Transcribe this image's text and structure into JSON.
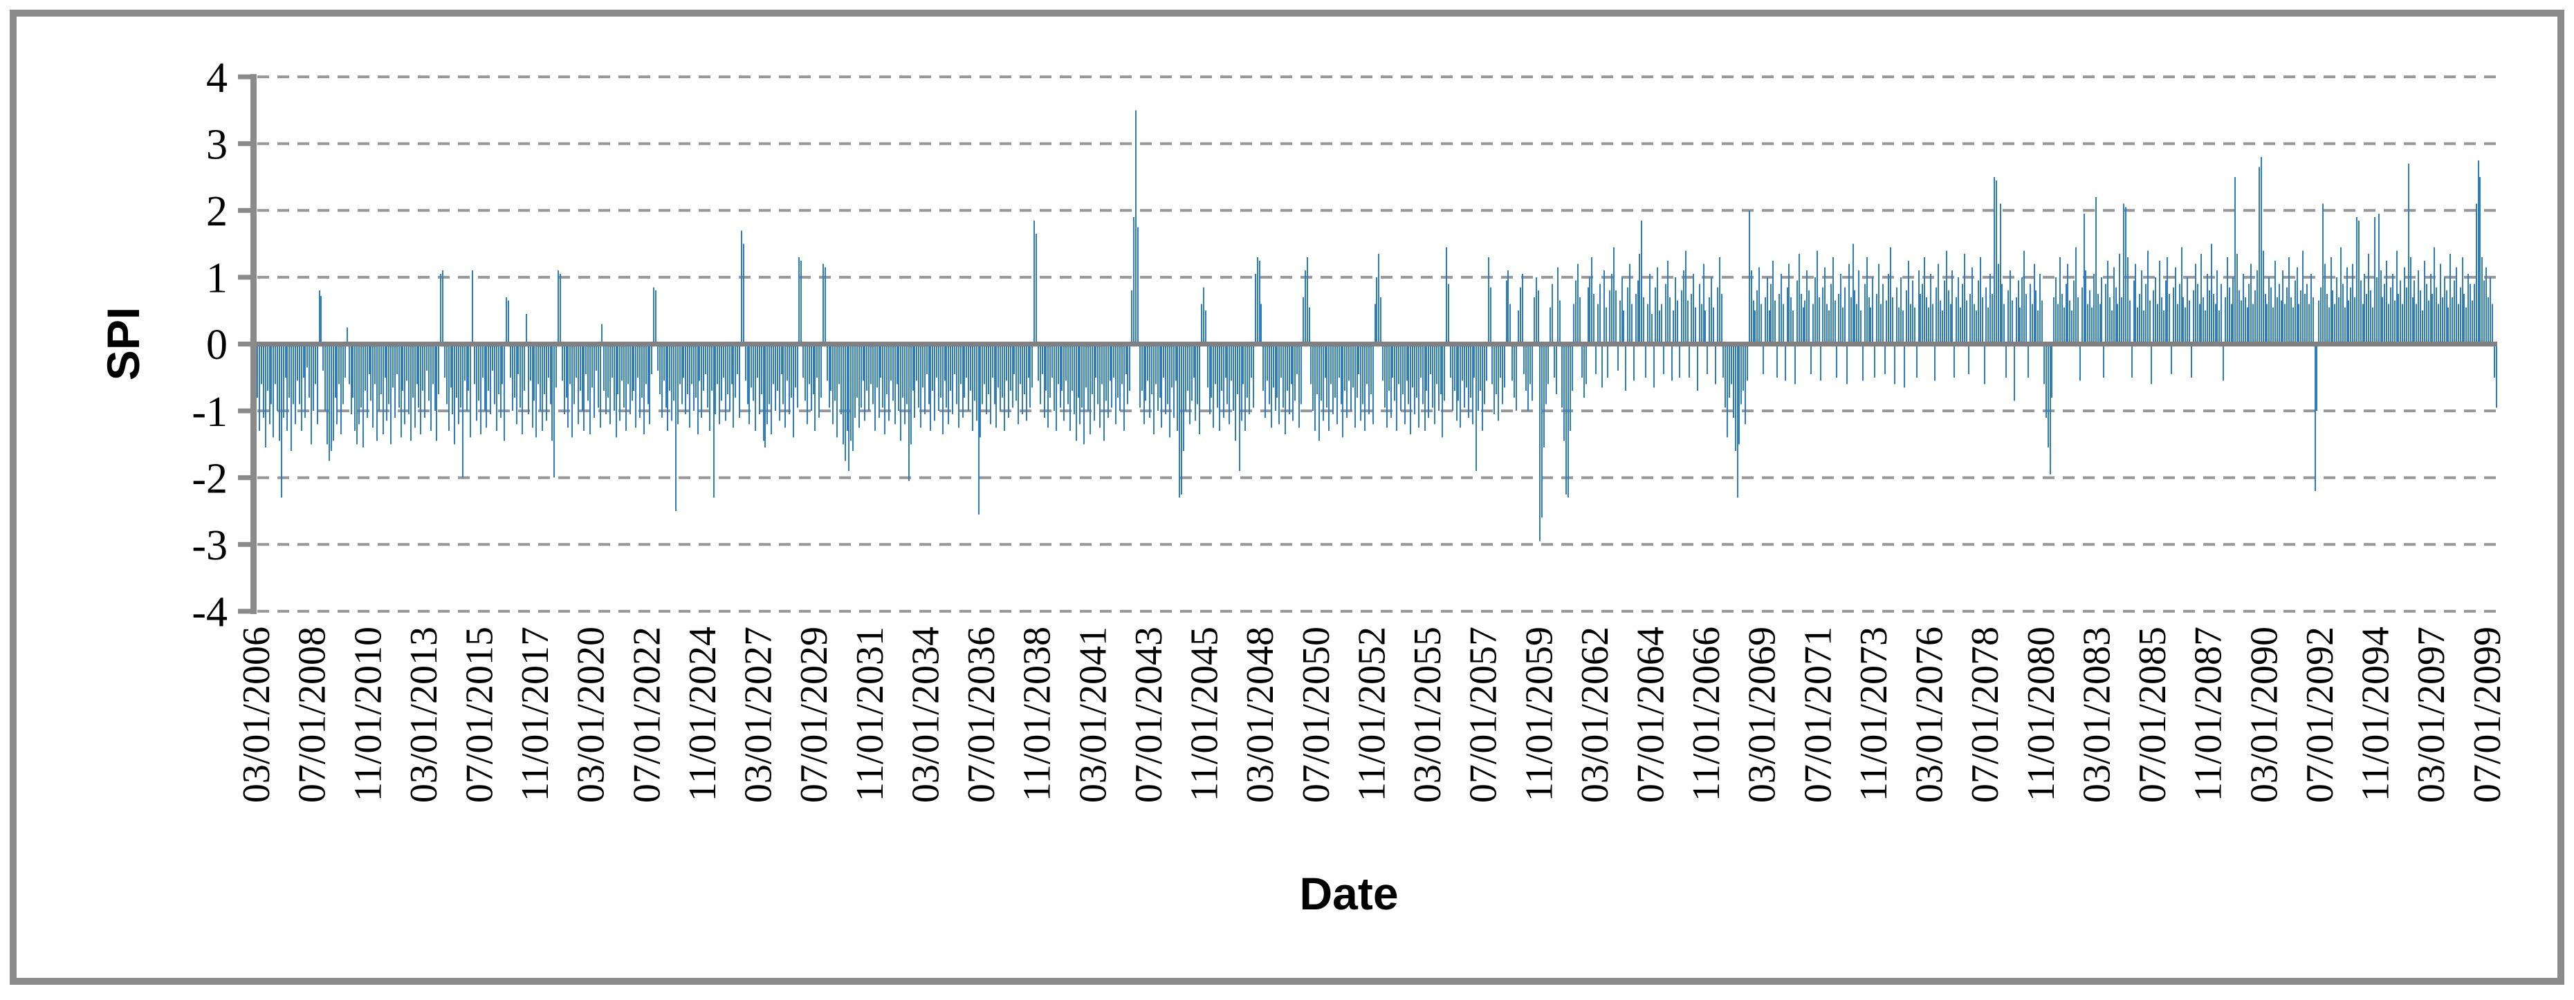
{
  "page": {
    "background": "#ffffff"
  },
  "colors": {
    "bar": "#2E7CBC",
    "zero_axis": "#808080",
    "axis": "#8A8A8A",
    "gridline": "#979797",
    "frame": "#8C8C8C",
    "tick_label": "#000000"
  },
  "chart_data": {
    "type": "bar",
    "title": "",
    "xlabel": "Date",
    "ylabel": "SPI",
    "ylim": [
      -4,
      4
    ],
    "y_ticks": [
      4,
      3,
      2,
      1,
      0,
      -1,
      -2,
      -3,
      -4
    ],
    "grid": "horizontal-dashed",
    "legend_position": "none",
    "x_start": "03/01/2006",
    "x_frequency": "monthly",
    "x_tick_interval_months": 28,
    "x_tick_labels": [
      "03/01/2006",
      "07/01/2008",
      "11/01/2010",
      "03/01/2013",
      "07/01/2015",
      "11/01/2017",
      "03/01/2020",
      "07/01/2022",
      "11/01/2024",
      "03/01/2027",
      "07/01/2029",
      "11/01/2031",
      "03/01/2034",
      "07/01/2036",
      "11/01/2038",
      "03/01/2041",
      "07/01/2043",
      "11/01/2045",
      "03/01/2048",
      "07/01/2050",
      "11/01/2052",
      "03/01/2055",
      "07/01/2057",
      "11/01/2059",
      "03/01/2062",
      "07/01/2064",
      "11/01/2066",
      "03/01/2069",
      "07/01/2071",
      "11/01/2073",
      "03/01/2076",
      "07/01/2078",
      "11/01/2080",
      "03/01/2083",
      "07/01/2085",
      "11/01/2087",
      "03/01/2090",
      "07/01/2092",
      "11/01/2094",
      "03/01/2097",
      "07/01/2099"
    ],
    "series": [
      {
        "name": "SPI",
        "values": [
          -0.45,
          -0.8,
          -1.3,
          -0.6,
          -1.1,
          -1.55,
          -0.7,
          -1.2,
          -0.9,
          -1.4,
          -0.6,
          -1.0,
          -1.45,
          -2.3,
          -1.1,
          -0.5,
          -1.3,
          -0.8,
          -1.6,
          -0.9,
          -1.2,
          -0.55,
          -0.9,
          -1.3,
          -0.5,
          -1.1,
          -0.35,
          -0.8,
          -1.5,
          -1.0,
          -0.6,
          -1.2,
          0.8,
          0.72,
          -0.4,
          -1.0,
          -1.5,
          -1.75,
          -1.6,
          -1.45,
          -0.8,
          -1.2,
          -0.6,
          -1.35,
          -0.9,
          -0.5,
          0.25,
          -0.6,
          -1.05,
          -0.8,
          -1.3,
          -1.5,
          -1.2,
          -0.95,
          -1.55,
          -0.7,
          -1.1,
          -0.45,
          -0.85,
          -1.25,
          -0.6,
          -1.45,
          -1.0,
          -0.75,
          -1.35,
          -0.5,
          -1.15,
          -0.9,
          -1.5,
          -0.65,
          -1.1,
          -0.45,
          -0.95,
          -1.4,
          -0.7,
          -1.2,
          -0.55,
          -1.05,
          -1.45,
          -0.8,
          -1.25,
          -0.6,
          -0.95,
          -1.35,
          -0.7,
          -1.1,
          -0.4,
          -0.85,
          -1.3,
          -0.6,
          -1.0,
          -1.45,
          -0.75,
          1.05,
          1.1,
          -0.5,
          -0.9,
          -1.3,
          -0.65,
          -1.05,
          -1.5,
          -0.8,
          -1.2,
          -0.95,
          -2.0,
          -0.55,
          -1.0,
          -0.7,
          -1.4,
          1.1,
          -0.6,
          -1.15,
          -0.85,
          -1.35,
          -0.5,
          -1.0,
          -1.25,
          -0.7,
          -1.05,
          -0.4,
          -0.9,
          -1.3,
          -0.75,
          -1.1,
          -0.6,
          -1.45,
          0.7,
          0.65,
          -0.5,
          -1.0,
          -0.8,
          -1.2,
          -0.45,
          -0.95,
          -1.35,
          -0.7,
          0.45,
          -1.05,
          -0.55,
          -1.25,
          -0.85,
          -1.4,
          -0.6,
          -1.0,
          -1.3,
          -0.75,
          -1.15,
          -0.5,
          -0.9,
          -1.45,
          -2.0,
          -0.65,
          1.1,
          1.05,
          -0.55,
          -1.05,
          -0.8,
          -1.25,
          -0.6,
          -1.4,
          -0.9,
          -0.5,
          -1.2,
          -0.7,
          -1.0,
          -1.3,
          -0.45,
          -0.85,
          -1.35,
          -0.65,
          -1.1,
          -0.4,
          -0.95,
          -1.25,
          0.3,
          -0.7,
          -1.05,
          -0.8,
          -1.2,
          -0.5,
          -1.0,
          -1.4,
          -0.75,
          -1.15,
          -0.55,
          -0.95,
          -1.3,
          -0.6,
          -1.05,
          -0.85,
          -0.7,
          -1.25,
          -0.5,
          -1.1,
          -0.8,
          -1.35,
          -0.6,
          -0.9,
          -1.2,
          -0.45,
          0.85,
          0.8,
          -0.4,
          -0.75,
          -1.1,
          -0.55,
          -0.95,
          -1.3,
          -0.7,
          -1.15,
          -0.85,
          -2.5,
          -1.2,
          -0.6,
          -0.9,
          -0.5,
          -1.05,
          -0.75,
          -1.25,
          -0.6,
          -1.0,
          -0.8,
          -1.35,
          -0.55,
          -1.1,
          -0.7,
          -0.45,
          -0.95,
          -1.3,
          -0.7,
          -2.3,
          -1.05,
          -0.6,
          -1.2,
          -0.85,
          -0.5,
          -1.15,
          -0.75,
          -1.0,
          -0.6,
          -1.25,
          -0.8,
          -0.45,
          -1.1,
          1.7,
          1.5,
          -0.55,
          -0.9,
          -1.2,
          -0.65,
          -0.85,
          -1.3,
          -0.5,
          -1.05,
          -0.75,
          -1.45,
          -1.55,
          -1.2,
          -0.9,
          -1.35,
          -0.6,
          -1.0,
          -0.7,
          -1.15,
          -0.45,
          -0.9,
          -1.25,
          -0.55,
          -1.05,
          -0.8,
          -1.4,
          -0.65,
          -0.95,
          1.3,
          1.25,
          -0.5,
          -0.85,
          -1.2,
          -0.6,
          -1.0,
          -0.75,
          -1.3,
          -0.5,
          -1.1,
          -0.8,
          1.2,
          1.15,
          -0.55,
          -0.95,
          -0.7,
          -1.2,
          -0.85,
          -1.4,
          -0.6,
          -1.05,
          -1.5,
          -1.75,
          -1.3,
          -1.9,
          -1.45,
          -1.6,
          -1.1,
          -0.8,
          -1.25,
          -0.95,
          -0.55,
          -1.15,
          -0.7,
          -1.0,
          -0.6,
          -0.9,
          -1.3,
          -0.65,
          -1.1,
          -0.5,
          -0.95,
          -1.35,
          -0.75,
          -1.15,
          -0.55,
          -0.85,
          -1.2,
          -0.6,
          -1.0,
          -1.45,
          -0.8,
          -1.2,
          -0.9,
          -2.05,
          -1.5,
          -0.7,
          -1.1,
          -0.55,
          -0.95,
          -1.25,
          -0.65,
          -1.05,
          -0.45,
          -0.9,
          -1.3,
          -0.7,
          -1.15,
          -0.5,
          -1.0,
          -0.8,
          -1.35,
          -0.55,
          -0.95,
          -1.2,
          -0.7,
          -1.05,
          -0.45,
          -0.9,
          -1.25,
          -0.6,
          -1.1,
          -0.8,
          -0.5,
          -1.0,
          -0.7,
          -1.3,
          -0.85,
          -1.15,
          -2.55,
          -1.4,
          -0.9,
          -0.6,
          -1.05,
          -0.75,
          -1.2,
          -0.5,
          -0.9,
          -1.25,
          -0.65,
          -1.0,
          -0.8,
          -1.3,
          -0.55,
          -1.1,
          -0.7,
          -0.95,
          -0.45,
          -0.85,
          -1.2,
          -0.6,
          -1.05,
          -0.75,
          -1.15,
          -0.5,
          -0.95,
          -0.65,
          1.85,
          1.65,
          -0.55,
          -0.9,
          -0.45,
          -1.1,
          -0.7,
          -1.25,
          -0.8,
          -0.5,
          -1.0,
          -1.3,
          -0.6,
          -0.95,
          -0.7,
          -1.15,
          -0.55,
          -0.9,
          -1.3,
          -0.7,
          -1.05,
          -1.45,
          -0.8,
          -1.2,
          -0.95,
          -1.5,
          -0.65,
          -1.0,
          -1.35,
          -0.75,
          -1.15,
          -0.5,
          -0.9,
          -1.25,
          -0.6,
          -1.45,
          -0.85,
          -1.1,
          -0.55,
          -0.95,
          -0.5,
          -1.2,
          -0.8,
          -1.0,
          -0.6,
          -1.3,
          -0.45,
          -0.9,
          -0.7,
          0.8,
          1.9,
          3.5,
          1.75,
          -0.95,
          -0.7,
          -1.2,
          -0.85,
          -0.55,
          -1.1,
          -0.75,
          -1.35,
          -0.6,
          -1.0,
          -0.8,
          -1.25,
          -0.5,
          -1.05,
          -0.9,
          -1.4,
          -0.65,
          -1.1,
          -0.55,
          -1.3,
          -2.3,
          -2.25,
          -1.6,
          -1.0,
          -0.7,
          -1.2,
          -0.85,
          -0.5,
          -1.15,
          -0.9,
          -1.35,
          0.6,
          0.85,
          0.5,
          -0.65,
          -1.05,
          -0.8,
          -1.25,
          -0.6,
          -0.95,
          -1.3,
          -0.7,
          -1.1,
          -0.5,
          -0.9,
          -1.2,
          -0.55,
          -1.0,
          -1.45,
          -0.75,
          -1.9,
          -1.15,
          -0.6,
          -1.3,
          -0.8,
          -1.05,
          -0.5,
          -0.95,
          1.05,
          1.3,
          1.25,
          0.6,
          -0.7,
          -1.1,
          -0.55,
          -0.9,
          -1.25,
          -0.65,
          -1.0,
          -0.8,
          -1.2,
          -0.5,
          -0.95,
          -1.35,
          -0.7,
          -1.05,
          -0.6,
          -1.15,
          -0.85,
          -0.45,
          -1.25,
          -0.9,
          0.7,
          1.1,
          1.3,
          0.55,
          -0.6,
          -1.0,
          -1.3,
          -0.75,
          -1.45,
          -0.85,
          -1.15,
          -0.5,
          -0.95,
          -1.3,
          -0.6,
          -1.05,
          -0.8,
          -1.2,
          -0.5,
          -0.9,
          -1.4,
          -0.7,
          -1.1,
          -0.55,
          -1.0,
          -0.65,
          -1.25,
          -0.8,
          -0.45,
          -1.15,
          -0.9,
          -1.3,
          -0.6,
          -1.05,
          -0.75,
          -1.2,
          0.6,
          1.0,
          1.35,
          0.7,
          -0.55,
          -0.95,
          -1.25,
          -0.7,
          -1.1,
          -0.5,
          -0.85,
          -1.3,
          -0.6,
          -1.0,
          -0.75,
          -1.2,
          -0.55,
          -0.9,
          -1.35,
          -0.65,
          -1.05,
          -0.8,
          -1.25,
          -0.5,
          -0.9,
          -1.3,
          -0.7,
          -1.1,
          -0.45,
          -0.95,
          -1.2,
          -0.6,
          -1.0,
          -0.75,
          -1.4,
          -0.85,
          1.45,
          0.9,
          -0.5,
          -1.0,
          -0.7,
          -1.15,
          -0.85,
          -1.25,
          -0.55,
          -0.95,
          -0.65,
          -1.1,
          -0.8,
          -1.2,
          -0.5,
          -1.9,
          -1.0,
          -0.7,
          -1.3,
          -0.9,
          -0.55,
          1.3,
          0.85,
          -0.6,
          -1.05,
          -0.75,
          -1.15,
          -0.5,
          -0.9,
          -0.65,
          0.95,
          1.1,
          0.6,
          -0.55,
          -0.8,
          -1.0,
          0.5,
          0.85,
          1.05,
          -0.45,
          -0.7,
          -1.0,
          -0.6,
          -0.85,
          0.7,
          1.0,
          0.8,
          -2.95,
          -2.6,
          -1.55,
          -0.9,
          -0.6,
          0.55,
          0.9,
          -0.5,
          -0.75,
          1.15,
          0.65,
          -0.95,
          -1.45,
          -2.25,
          -2.3,
          -1.3,
          -0.7,
          0.6,
          0.95,
          1.2,
          0.7,
          -0.5,
          -0.8,
          -0.6,
          0.85,
          1.0,
          1.3,
          0.75,
          -0.45,
          0.6,
          0.9,
          -0.65,
          1.1,
          0.55,
          -0.5,
          0.8,
          1.05,
          1.45,
          0.8,
          -0.4,
          0.65,
          1.0,
          0.5,
          -0.7,
          0.85,
          1.2,
          0.6,
          -0.55,
          0.75,
          0.95,
          1.35,
          1.85,
          0.7,
          -0.5,
          0.6,
          1.05,
          0.45,
          -0.65,
          0.85,
          1.15,
          0.5,
          0.6,
          -0.45,
          0.9,
          1.25,
          0.7,
          -0.55,
          0.5,
          1.0,
          0.65,
          -0.5,
          0.8,
          1.1,
          1.4,
          0.65,
          -0.5,
          0.75,
          1.05,
          0.55,
          -0.7,
          0.9,
          0.6,
          1.2,
          0.5,
          -0.45,
          0.7,
          1.0,
          0.55,
          -0.6,
          0.85,
          1.3,
          0.75,
          -0.5,
          -0.95,
          -1.4,
          -0.8,
          -0.6,
          -1.1,
          -1.6,
          -2.3,
          -1.5,
          -0.9,
          -0.7,
          -1.2,
          -0.55,
          2.0,
          1.1,
          0.65,
          0.5,
          0.8,
          1.15,
          0.6,
          -0.45,
          0.7,
          1.0,
          0.5,
          0.9,
          1.25,
          0.65,
          -0.5,
          0.75,
          1.05,
          0.6,
          -0.55,
          0.85,
          1.2,
          0.7,
          0.5,
          -0.6,
          0.95,
          1.35,
          0.75,
          0.55,
          0.65,
          1.1,
          0.8,
          -0.45,
          0.6,
          1.0,
          1.4,
          0.7,
          -0.55,
          0.85,
          1.15,
          0.6,
          0.5,
          0.9,
          1.3,
          0.65,
          -0.5,
          0.75,
          1.05,
          0.55,
          0.85,
          -0.6,
          1.2,
          0.7,
          1.5,
          0.8,
          0.6,
          1.1,
          0.5,
          -0.55,
          0.9,
          1.3,
          0.7,
          0.55,
          1.0,
          -0.5,
          0.75,
          1.2,
          0.6,
          0.9,
          -0.45,
          0.65,
          1.05,
          1.45,
          0.7,
          -0.6,
          0.85,
          0.55,
          1.0,
          0.5,
          -0.65,
          0.8,
          1.25,
          0.6,
          0.95,
          0.55,
          -0.5,
          1.1,
          0.75,
          0.9,
          1.3,
          0.7,
          0.55,
          1.05,
          0.6,
          -0.55,
          0.85,
          1.2,
          0.65,
          0.5,
          0.95,
          1.4,
          0.8,
          0.6,
          1.1,
          -0.5,
          0.7,
          1.0,
          0.55,
          0.9,
          1.35,
          0.65,
          -0.45,
          0.75,
          1.15,
          0.6,
          0.5,
          0.95,
          1.3,
          0.7,
          -0.6,
          0.85,
          0.55,
          1.05,
          0.75,
          2.5,
          2.45,
          1.2,
          2.1,
          0.9,
          0.6,
          -0.5,
          0.8,
          1.1,
          0.65,
          -0.85,
          0.7,
          0.95,
          0.55,
          1.0,
          1.4,
          0.75,
          -0.5,
          0.9,
          0.6,
          1.2,
          0.8,
          0.5,
          1.05,
          0.65,
          -0.6,
          -1.1,
          -1.55,
          -1.95,
          -0.8,
          0.7,
          1.0,
          0.6,
          1.3,
          0.75,
          0.55,
          0.9,
          1.2,
          0.65,
          0.5,
          0.95,
          1.45,
          0.7,
          -0.55,
          0.85,
          1.95,
          1.1,
          0.6,
          0.8,
          0.55,
          1.05,
          2.2,
          0.75,
          0.6,
          1.0,
          -0.5,
          0.9,
          1.25,
          0.7,
          0.5,
          1.15,
          0.85,
          0.6,
          1.35,
          0.7,
          2.1,
          2.05,
          1.3,
          0.65,
          -0.5,
          0.95,
          1.2,
          0.55,
          0.75,
          1.1,
          0.5,
          0.9,
          1.4,
          0.65,
          -0.6,
          0.8,
          1.0,
          0.6,
          1.25,
          0.7,
          0.5,
          0.95,
          1.3,
          0.75,
          -0.45,
          0.85,
          1.15,
          0.6,
          0.9,
          1.45,
          0.7,
          0.55,
          1.0,
          0.65,
          -0.5,
          0.8,
          1.2,
          0.9,
          0.6,
          1.35,
          0.7,
          0.5,
          1.05,
          0.8,
          1.5,
          0.75,
          0.6,
          1.1,
          0.5,
          0.9,
          -0.55,
          0.7,
          1.3,
          0.85,
          0.6,
          1.0,
          2.5,
          1.35,
          0.8,
          0.65,
          1.05,
          0.7,
          0.55,
          0.9,
          1.2,
          0.6,
          0.8,
          1.1,
          2.65,
          2.8,
          1.4,
          0.75,
          0.6,
          1.0,
          0.85,
          0.55,
          1.25,
          0.7,
          0.9,
          0.65,
          1.1,
          0.6,
          0.85,
          1.3,
          0.7,
          0.55,
          0.95,
          1.15,
          0.6,
          0.8,
          1.4,
          0.75,
          0.9,
          0.6,
          1.05,
          0.7,
          -2.2,
          -1.0,
          0.65,
          0.85,
          2.1,
          1.2,
          0.75,
          0.55,
          1.3,
          0.8,
          0.6,
          1.0,
          0.7,
          1.45,
          0.9,
          0.55,
          1.15,
          0.65,
          0.85,
          1.2,
          0.7,
          1.9,
          1.85,
          0.95,
          0.6,
          1.05,
          0.75,
          1.35,
          0.8,
          0.55,
          1.9,
          1.0,
          1.95,
          1.1,
          0.7,
          0.9,
          1.25,
          0.6,
          0.85,
          1.05,
          0.65,
          1.4,
          0.75,
          0.95,
          0.6,
          1.15,
          0.85,
          2.7,
          1.3,
          0.7,
          0.95,
          0.6,
          1.1,
          0.8,
          0.5,
          1.25,
          0.9,
          0.65,
          1.05,
          0.75,
          1.45,
          0.85,
          0.6,
          1.2,
          0.7,
          1.0,
          0.8,
          0.55,
          1.35,
          0.7,
          0.95,
          1.15,
          0.6,
          0.85,
          1.3,
          0.75,
          0.55,
          1.05,
          0.9,
          0.65,
          0.9,
          2.1,
          2.75,
          2.5,
          1.3,
          0.95,
          1.15,
          0.7,
          1.0,
          0.6,
          -0.5,
          -0.95
        ]
      }
    ]
  }
}
